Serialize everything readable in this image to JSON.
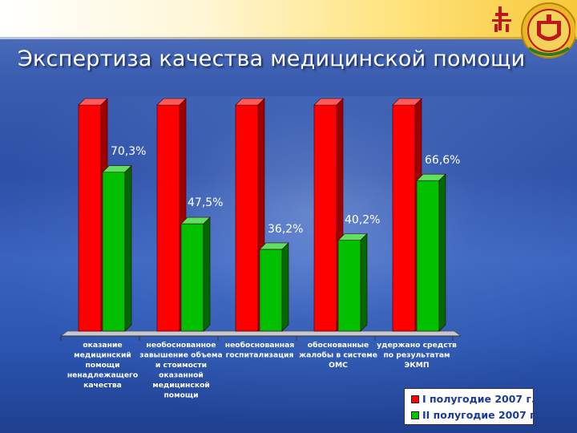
{
  "slide": {
    "title": "Экспертиза качества медицинской помощи"
  },
  "emblem": {
    "icon": "chuvash-coat-of-arms-icon"
  },
  "colors": {
    "series1": "#ff0000",
    "series1_top": "#ff5a5a",
    "series1_side": "#a00000",
    "series2": "#00c000",
    "series2_top": "#60e060",
    "series2_side": "#006a00"
  },
  "chart_data": {
    "type": "bar",
    "categories": [
      [
        "оказание",
        "медицинский",
        "помощи",
        "ненадлежащего",
        "качества"
      ],
      [
        "необоснованное",
        "завышение объема",
        "и стоимости",
        "оказанной",
        "медицинской",
        "помощи"
      ],
      [
        "необоснованная",
        "госпитализация"
      ],
      [
        "обоснованные",
        "жалобы в системе",
        "ОМС"
      ],
      [
        "удержано средств",
        "по результатам",
        "ЭКМП"
      ]
    ],
    "series": [
      {
        "name": "I полугодие 2007 г.",
        "values": [
          100,
          100,
          100,
          100,
          100
        ],
        "labels": [
          "",
          "",
          "",
          "",
          ""
        ]
      },
      {
        "name": "II полугодие 2007 г.",
        "values": [
          70.3,
          47.5,
          36.2,
          40.2,
          66.6
        ],
        "labels": [
          "70,3%",
          "47,5%",
          "36,2%",
          "40,2%",
          "66,6%"
        ]
      }
    ],
    "ylim": [
      0,
      100
    ],
    "legend_position": "bottom-right",
    "grid": false
  },
  "legend": {
    "items": [
      "I полугодие 2007 г.",
      "II полугодие 2007 г."
    ]
  }
}
